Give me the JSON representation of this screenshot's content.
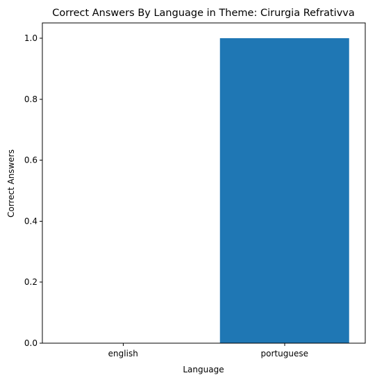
{
  "chart_data": {
    "type": "bar",
    "title": "Correct Answers By Language in Theme: Cirurgia Refrativva",
    "xlabel": "Language",
    "ylabel": "Correct Answers",
    "categories": [
      "english",
      "portuguese"
    ],
    "values": [
      0,
      1
    ],
    "ylim": [
      0,
      1.05
    ],
    "yticks": [
      "0.0",
      "0.2",
      "0.4",
      "0.6",
      "0.8",
      "1.0"
    ],
    "bar_color": "#1f77b4",
    "grid": false,
    "legend": "none"
  }
}
